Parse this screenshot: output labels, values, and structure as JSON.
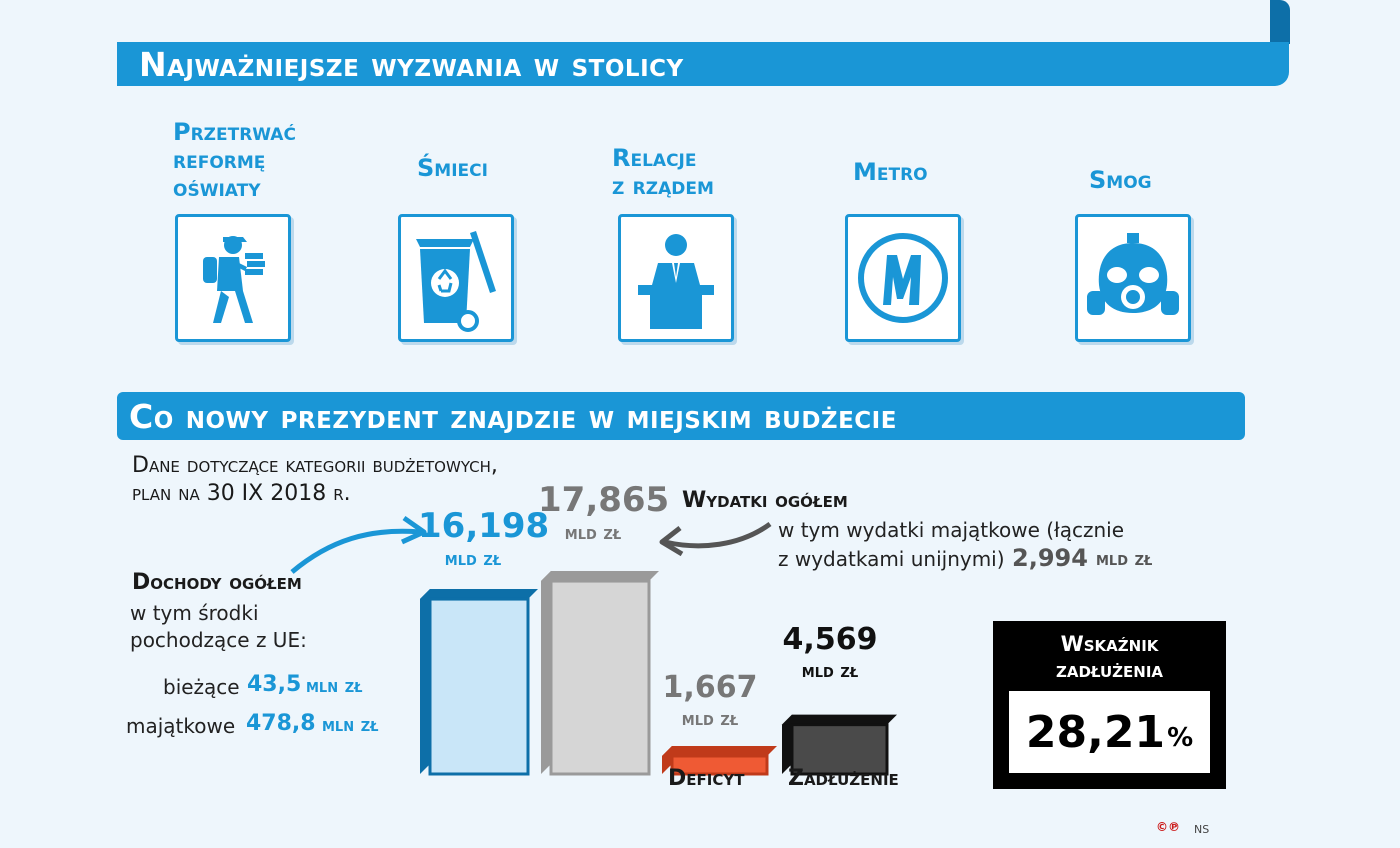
{
  "header1": {
    "title": "Najważniejsze wyzwania w stolicy"
  },
  "challenges": [
    {
      "label": "Przetrwać\nreformę\noświaty",
      "icon": "student-backpack-icon"
    },
    {
      "label": "Śmieci",
      "icon": "recycle-bin-icon"
    },
    {
      "label": "Relacje\nz rządem",
      "icon": "speaker-podium-icon"
    },
    {
      "label": "Metro",
      "icon": "metro-logo-icon"
    },
    {
      "label": "Smog",
      "icon": "gas-mask-icon"
    }
  ],
  "header2": {
    "title": "Co nowy prezydent znajdzie w miejskim budżecie"
  },
  "subtitle": {
    "line1": "Dane dotyczące kategorii budżetowych,",
    "line2": "plan na 30 IX 2018 r."
  },
  "chart_data": {
    "type": "bar",
    "categories": [
      "Dochody ogółem",
      "Wydatki ogółem",
      "Deficyt",
      "Zadłużenie"
    ],
    "values": [
      16.198,
      17.865,
      1.667,
      4.569
    ],
    "value_labels": [
      "16,198",
      "17,865",
      "1,667",
      "4,569"
    ],
    "unit": "mld zł",
    "colors": [
      "#1a96d6",
      "#c8c8c8",
      "#e8502a",
      "#3a3a3a"
    ]
  },
  "dochody": {
    "head": "Dochody ogółem",
    "desc1": "w tym środki",
    "desc2": "pochodzące z UE:",
    "rows": [
      {
        "label": "bieżące",
        "value": "43,5",
        "unit": "mln zł"
      },
      {
        "label": "majątkowe",
        "value": "478,8",
        "unit": "mln zł"
      }
    ]
  },
  "wydatki": {
    "head": "Wydatki ogółem",
    "desc1": "w tym wydatki majątkowe (łącznie",
    "desc2": "z wydatkami unijnymi)",
    "value": "2,994",
    "unit": "mld zł"
  },
  "labels": {
    "deficyt": "Deficyt",
    "zadluzenie": "Zadłużenie"
  },
  "debt_index": {
    "title1": "Wskaźnik",
    "title2": "zadłużenia",
    "value": "28,21",
    "pct": "%"
  },
  "credit": {
    "logo": "©℗",
    "author": "NS"
  }
}
